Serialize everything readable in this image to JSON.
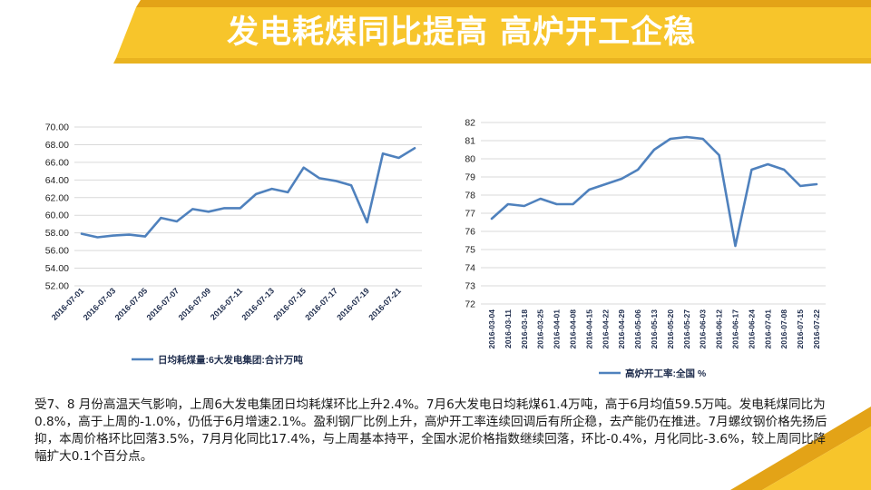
{
  "slide": {
    "title": "发电耗煤同比提高 高炉开工企稳",
    "body_text": "受7、8 月份高温天气影响，上周6大发电集团日均耗煤环比上升2.4%。7月6大发电日均耗煤61.4万吨，高于6月均值59.5万吨。发电耗煤同比为0.8%，高于上周的-1.0%，仍低于6月增速2.1%。盈利钢厂比例上升，高炉开工率连续回调后有所企稳，去产能仍在推进。7月螺纹钢价格先扬后抑，本周价格环比回落3.5%，7月月化同比17.4%，与上周基本持平，全国水泥价格指数继续回落，环比-0.4%，月化同比-3.6%，较上周同比降幅扩大0.1个百分点。"
  },
  "colors": {
    "series": "#4f81bd",
    "accent_yellow": "#f7c52b",
    "accent_gold": "#e3a317",
    "grid": "#d9d9d9",
    "text": "#1a1a1a"
  },
  "chart_data": [
    {
      "type": "line",
      "legend_position": "bottom",
      "grid": true,
      "ylim": [
        52,
        70
      ],
      "y_ticks": [
        "52.00",
        "54.00",
        "56.00",
        "58.00",
        "60.00",
        "62.00",
        "64.00",
        "66.00",
        "68.00",
        "70.00"
      ],
      "x_tick_labels": [
        "2016-07-01",
        "2016-07-03",
        "2016-07-05",
        "2016-07-07",
        "2016-07-09",
        "2016-07-11",
        "2016-07-13",
        "2016-07-15",
        "2016-07-17",
        "2016-07-19",
        "2016-07-21"
      ],
      "x": [
        "2016-07-01",
        "2016-07-02",
        "2016-07-03",
        "2016-07-04",
        "2016-07-05",
        "2016-07-06",
        "2016-07-07",
        "2016-07-08",
        "2016-07-09",
        "2016-07-10",
        "2016-07-11",
        "2016-07-12",
        "2016-07-13",
        "2016-07-14",
        "2016-07-15",
        "2016-07-16",
        "2016-07-17",
        "2016-07-18",
        "2016-07-19",
        "2016-07-20",
        "2016-07-21",
        "2016-07-22"
      ],
      "series": [
        {
          "name": "日均耗煤量:6大发电集团:合计万吨",
          "values": [
            57.9,
            57.5,
            57.7,
            57.8,
            57.6,
            59.7,
            59.3,
            60.7,
            60.4,
            60.8,
            60.8,
            62.4,
            63.0,
            62.6,
            65.4,
            64.2,
            63.9,
            63.4,
            59.2,
            67.0,
            66.5,
            67.6
          ]
        }
      ]
    },
    {
      "type": "line",
      "legend_position": "bottom",
      "grid": true,
      "ylim": [
        72,
        82
      ],
      "y_ticks": [
        "72",
        "73",
        "74",
        "75",
        "76",
        "77",
        "78",
        "79",
        "80",
        "81",
        "82"
      ],
      "x": [
        "2016-03-04",
        "2016-03-11",
        "2016-03-18",
        "2016-03-25",
        "2016-04-01",
        "2016-04-08",
        "2016-04-15",
        "2016-04-22",
        "2016-04-29",
        "2016-05-06",
        "2016-05-13",
        "2016-05-20",
        "2016-05-27",
        "2016-06-03",
        "2016-06-12",
        "2016-06-17",
        "2016-06-24",
        "2016-07-01",
        "2016-07-08",
        "2016-07-15",
        "2016-07-22"
      ],
      "series": [
        {
          "name": "高炉开工率:全国 %",
          "values": [
            76.7,
            77.5,
            77.4,
            77.8,
            77.5,
            77.5,
            78.3,
            78.6,
            78.9,
            79.4,
            80.5,
            81.1,
            81.2,
            81.1,
            80.2,
            75.2,
            79.4,
            79.7,
            79.4,
            78.5,
            78.6
          ]
        }
      ]
    }
  ]
}
